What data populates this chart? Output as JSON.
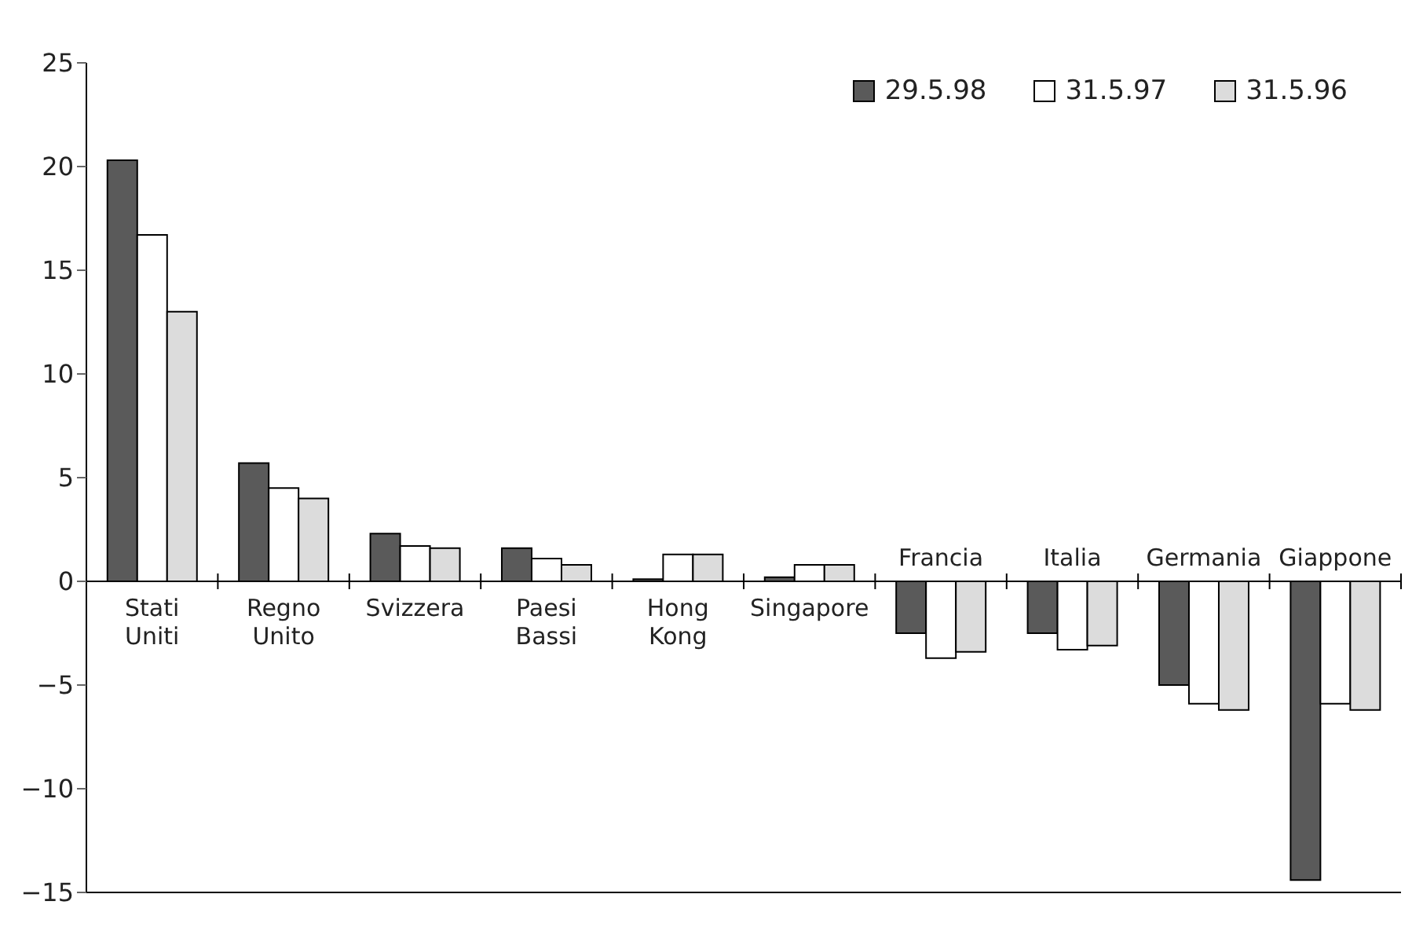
{
  "chart_data": {
    "type": "bar",
    "categories": [
      "Stati Uniti",
      "Regno Unito",
      "Svizzera",
      "Paesi Bassi",
      "Hong Kong",
      "Singapore",
      "Francia",
      "Italia",
      "Germania",
      "Giappone"
    ],
    "series": [
      {
        "name": "29.5.98",
        "color": "#5a5a5a",
        "values": [
          20.3,
          5.7,
          2.3,
          1.6,
          0.1,
          0.2,
          -2.5,
          -2.5,
          -5.0,
          -14.4
        ]
      },
      {
        "name": "31.5.97",
        "color": "#ffffff",
        "values": [
          16.7,
          4.5,
          1.7,
          1.1,
          1.3,
          0.8,
          -3.7,
          -3.3,
          -5.9,
          -5.9
        ]
      },
      {
        "name": "31.5.96",
        "color": "#dcdcdc",
        "values": [
          13.0,
          4.0,
          1.6,
          0.8,
          1.3,
          0.8,
          -3.4,
          -3.1,
          -6.2,
          -6.2
        ]
      }
    ],
    "ylim": [
      -15,
      25
    ],
    "yticks": [
      -15,
      -10,
      -5,
      0,
      5,
      10,
      15,
      20,
      25
    ],
    "legend": "top right"
  }
}
